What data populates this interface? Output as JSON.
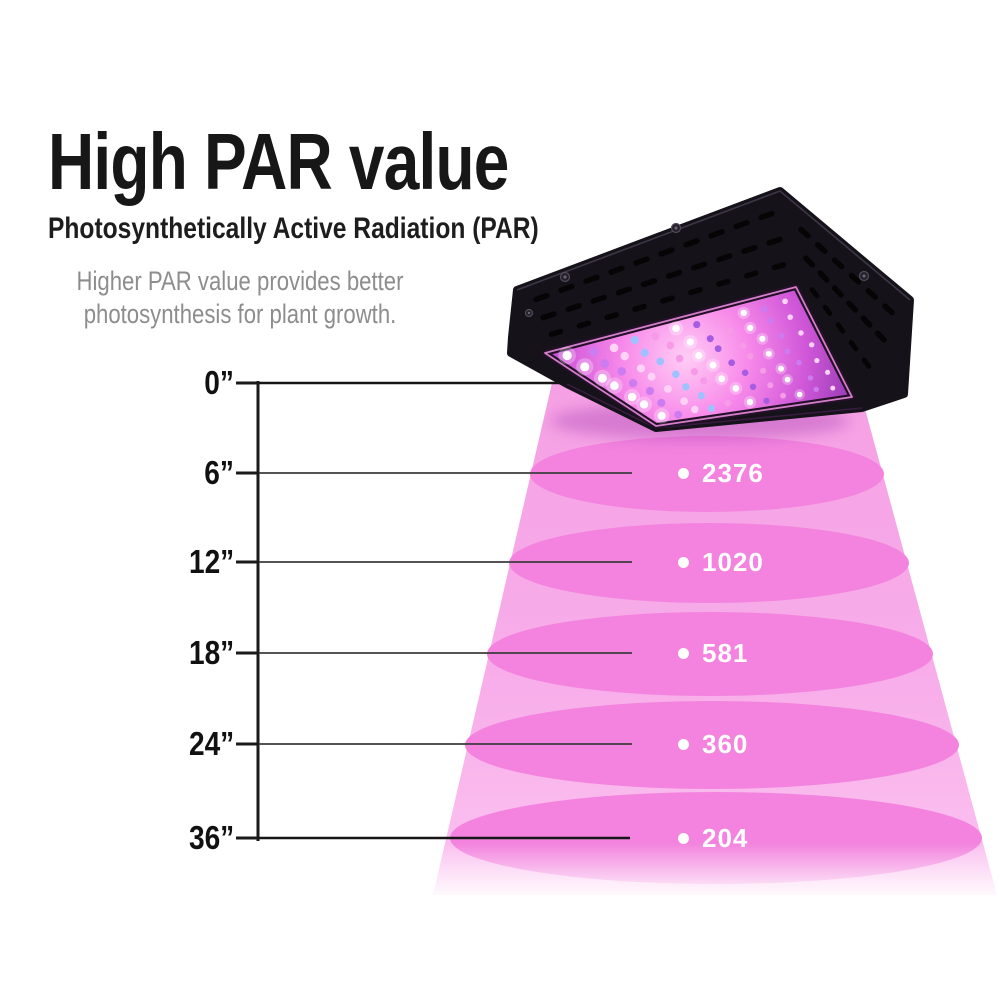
{
  "header": {
    "title": "High PAR value",
    "subtitle": "Photosynthetically Active Radiation (PAR)",
    "description": [
      "Higher PAR value provides better",
      "photosynthesis for plant growth."
    ]
  },
  "diagram": {
    "axis_labels": [
      "0”",
      "6”",
      "12”",
      "18”",
      "24”",
      "36”"
    ],
    "readings": [
      {
        "distance": "6”",
        "par": "2376"
      },
      {
        "distance": "12”",
        "par": "1020"
      },
      {
        "distance": "18”",
        "par": "581"
      },
      {
        "distance": "24”",
        "par": "360"
      },
      {
        "distance": "36”",
        "par": "204"
      }
    ],
    "lamp_icon": "led-grow-light-panel-icon"
  },
  "colors": {
    "light_cone": "#f7a7e8",
    "light_pool": "#f383de",
    "value_text": "#ffffff",
    "heading_text": "#171717",
    "description_text": "#8d8d8d",
    "axis_line": "#1a1a1a",
    "level_line": "#3b3b3b",
    "lamp_body": "#15121a",
    "led_panel_glow": "#e86fe0"
  },
  "chart_data": {
    "type": "table",
    "title": "High PAR value",
    "subtitle": "Photosynthetically Active Radiation (PAR)",
    "axis_origin_label": "0”",
    "categories": [
      "6”",
      "12”",
      "18”",
      "24”",
      "36”"
    ],
    "values": [
      2376,
      1020,
      581,
      360,
      204
    ]
  }
}
